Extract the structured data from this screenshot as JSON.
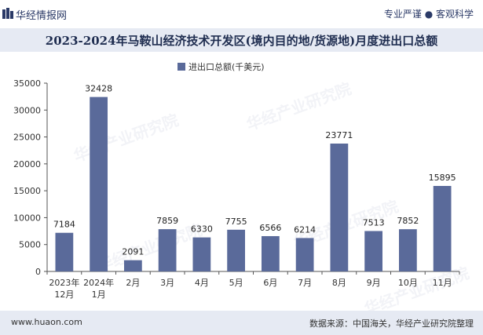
{
  "header": {
    "brand": "华经情报网",
    "slogan": "专业严谨 ● 客观科学"
  },
  "chart_data": {
    "type": "bar",
    "title": "2023-2024年马鞍山经济技术开发区(境内目的地/货源地)月度进出口总额",
    "legend": "进出口总额(千美元)",
    "categories": [
      "2023年\n12月",
      "2024年\n1月",
      "2月",
      "3月",
      "4月",
      "5月",
      "6月",
      "7月",
      "8月",
      "9月",
      "10月",
      "11月"
    ],
    "values": [
      7184,
      32428,
      2091,
      7859,
      6330,
      7755,
      6566,
      6214,
      23771,
      7513,
      7852,
      15895
    ],
    "yticks": [
      0,
      5000,
      10000,
      15000,
      20000,
      25000,
      30000,
      35000
    ],
    "ylim": [
      0,
      35000
    ],
    "bar_color": "#5a6a9a"
  },
  "watermark": "华经产业研究院",
  "footer": {
    "url": "www.huaon.com",
    "source": "数据来源：中国海关，华经产业研究院整理"
  }
}
